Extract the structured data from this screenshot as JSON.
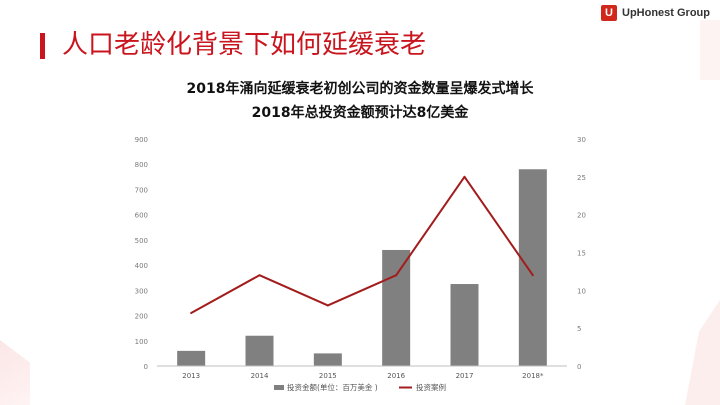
{
  "page": {
    "title": "人口老龄化背景下如何延缓衰老",
    "logo_mark": "U",
    "logo_text": "UpHonest Group"
  },
  "colors": {
    "accent": "#c9151e",
    "bar": "#808080",
    "line": "#a31c1c"
  },
  "chart_data": {
    "type": "bar",
    "title": "2018年涌向延缓衰老初创公司的资金数量呈爆发式增长",
    "subtitle": "2018年总投资金额预计达8亿美金",
    "categories": [
      "2013",
      "2014",
      "2015",
      "2016",
      "2017",
      "2018*"
    ],
    "series": [
      {
        "name": "投资金额(单位：百万美金 )",
        "type": "bar",
        "axis": "left",
        "values": [
          60,
          120,
          50,
          460,
          325,
          780
        ]
      },
      {
        "name": "投资案例",
        "type": "line",
        "axis": "right",
        "values": [
          7,
          12,
          8,
          12,
          25,
          12
        ]
      }
    ],
    "y_left": {
      "min": 0,
      "max": 900,
      "ticks": [
        "0",
        "100",
        "200",
        "300",
        "400",
        "500",
        "600",
        "700",
        "800",
        "900"
      ]
    },
    "y_right": {
      "min": 0,
      "max": 30,
      "ticks": [
        "0",
        "5",
        "10",
        "15",
        "20",
        "25",
        "30"
      ]
    },
    "grid": false,
    "legend": "bottom"
  }
}
